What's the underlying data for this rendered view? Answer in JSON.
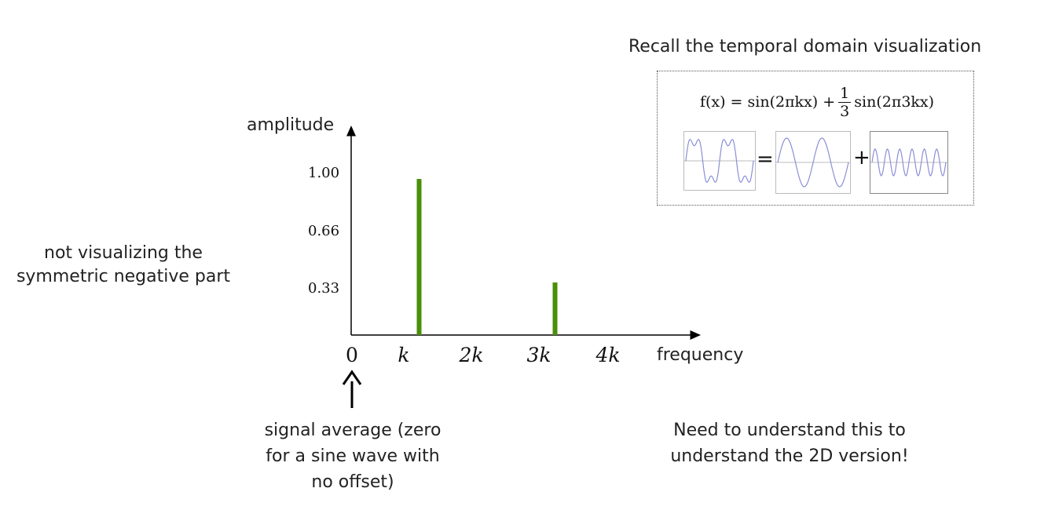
{
  "recall_title": "Recall the temporal domain visualization",
  "formula": {
    "lhs": "f(x) = sin(2πkx) + ",
    "frac_num": "1",
    "frac_den": "3",
    "rhs": "sin(2π3kx)",
    "equals": "=",
    "plus": "+"
  },
  "note_left": [
    "not visualizing the",
    "symmetric negative part"
  ],
  "note_bottom": [
    "signal average (zero",
    "for a sine wave with",
    "no offset)"
  ],
  "note_right": [
    "Need to understand this to",
    "understand the 2D version!"
  ],
  "chart_data": {
    "type": "bar",
    "ylabel": "amplitude",
    "xlabel": "frequency",
    "x_ticks": [
      "0",
      "k",
      "2k",
      "3k",
      "4k"
    ],
    "y_ticks": [
      "1.00",
      "0.66",
      "0.33"
    ],
    "y_tick_values": [
      1.0,
      0.66,
      0.33
    ],
    "bars": [
      {
        "x": 1,
        "value": 0.98
      },
      {
        "x": 3,
        "value": 0.33
      }
    ],
    "bar_color": "#4a8f0a"
  },
  "colors": {
    "wave": "#8a8fd6",
    "axis": "#000000"
  }
}
